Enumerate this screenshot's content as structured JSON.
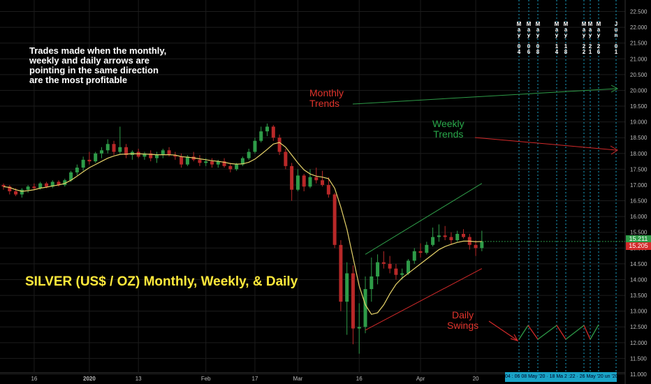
{
  "chart_data": {
    "type": "candlestick",
    "title": "SILVER (US$ / OZ) Monthly, Weekly, & Daily",
    "x_tick_labels": [
      "16",
      "2020",
      "13",
      "Feb",
      "17",
      "Mar",
      "16",
      "Apr",
      "20"
    ],
    "y_tick_labels": [
      "11.000",
      "11.500",
      "12.000",
      "12.500",
      "13.000",
      "13.500",
      "14.000",
      "14.500",
      "15.000",
      "15.500",
      "16.000",
      "16.500",
      "17.000",
      "17.500",
      "18.000",
      "18.500",
      "19.000",
      "19.500",
      "20.000",
      "20.500",
      "21.000",
      "21.500",
      "22.000",
      "22.500"
    ],
    "ylim": [
      11.0,
      22.6
    ],
    "last_price": "15.211",
    "prev_close": "15.205",
    "ohlc": [
      [
        17.0,
        17.05,
        16.85,
        16.95
      ],
      [
        16.95,
        17.0,
        16.7,
        16.8
      ],
      [
        16.8,
        16.9,
        16.65,
        16.7
      ],
      [
        16.7,
        16.9,
        16.6,
        16.85
      ],
      [
        16.85,
        17.0,
        16.75,
        16.95
      ],
      [
        16.95,
        17.05,
        16.85,
        16.9
      ],
      [
        16.9,
        17.1,
        16.85,
        17.05
      ],
      [
        17.05,
        17.1,
        16.9,
        16.95
      ],
      [
        16.95,
        17.15,
        16.9,
        17.1
      ],
      [
        17.1,
        17.15,
        16.95,
        17.0
      ],
      [
        17.0,
        17.2,
        16.95,
        17.15
      ],
      [
        17.15,
        17.45,
        17.1,
        17.4
      ],
      [
        17.4,
        17.65,
        17.3,
        17.55
      ],
      [
        17.55,
        17.9,
        17.45,
        17.8
      ],
      [
        17.8,
        18.05,
        17.65,
        17.75
      ],
      [
        17.75,
        18.05,
        17.7,
        18.0
      ],
      [
        18.0,
        18.2,
        17.85,
        18.1
      ],
      [
        18.1,
        18.45,
        18.0,
        18.3
      ],
      [
        18.3,
        18.4,
        17.95,
        18.05
      ],
      [
        18.05,
        18.85,
        18.0,
        18.2
      ],
      [
        18.2,
        18.3,
        17.85,
        17.95
      ],
      [
        17.95,
        18.1,
        17.8,
        18.05
      ],
      [
        18.05,
        18.15,
        17.85,
        17.9
      ],
      [
        17.9,
        18.05,
        17.8,
        18.0
      ],
      [
        18.0,
        18.1,
        17.75,
        17.85
      ],
      [
        17.85,
        18.05,
        17.7,
        17.95
      ],
      [
        17.95,
        18.15,
        17.85,
        18.1
      ],
      [
        18.1,
        18.2,
        17.9,
        17.95
      ],
      [
        17.95,
        18.05,
        17.8,
        17.9
      ],
      [
        17.9,
        18.0,
        17.55,
        17.65
      ],
      [
        17.65,
        17.95,
        17.6,
        17.9
      ],
      [
        17.9,
        18.05,
        17.75,
        17.8
      ],
      [
        17.8,
        17.95,
        17.6,
        17.7
      ],
      [
        17.7,
        17.85,
        17.6,
        17.75
      ],
      [
        17.75,
        17.85,
        17.55,
        17.65
      ],
      [
        17.65,
        17.8,
        17.55,
        17.75
      ],
      [
        17.75,
        17.85,
        17.55,
        17.6
      ],
      [
        17.6,
        17.7,
        17.4,
        17.5
      ],
      [
        17.5,
        17.7,
        17.45,
        17.65
      ],
      [
        17.65,
        17.9,
        17.6,
        17.85
      ],
      [
        17.85,
        18.15,
        17.8,
        18.05
      ],
      [
        18.05,
        18.5,
        18.0,
        18.4
      ],
      [
        18.4,
        18.85,
        18.35,
        18.7
      ],
      [
        18.7,
        18.95,
        18.55,
        18.85
      ],
      [
        18.85,
        18.9,
        18.4,
        18.5
      ],
      [
        18.5,
        18.6,
        17.95,
        18.05
      ],
      [
        18.05,
        18.15,
        17.5,
        17.6
      ],
      [
        17.6,
        17.7,
        16.5,
        16.85
      ],
      [
        16.85,
        17.5,
        16.8,
        17.3
      ],
      [
        17.3,
        17.35,
        16.8,
        16.95
      ],
      [
        16.95,
        17.5,
        16.9,
        17.25
      ],
      [
        17.25,
        17.55,
        17.05,
        17.15
      ],
      [
        17.15,
        17.45,
        16.95,
        17.0
      ],
      [
        17.0,
        17.25,
        16.6,
        16.7
      ],
      [
        16.7,
        16.75,
        15.0,
        15.1
      ],
      [
        15.1,
        15.25,
        13.0,
        13.3
      ],
      [
        13.3,
        14.55,
        12.25,
        14.2
      ],
      [
        14.2,
        14.45,
        11.95,
        12.45
      ],
      [
        12.45,
        13.25,
        11.65,
        12.5
      ],
      [
        12.5,
        14.1,
        12.3,
        13.7
      ],
      [
        13.7,
        14.7,
        13.3,
        14.1
      ],
      [
        14.1,
        14.8,
        13.85,
        14.55
      ],
      [
        14.55,
        14.9,
        14.35,
        14.5
      ],
      [
        14.5,
        14.75,
        14.2,
        14.35
      ],
      [
        14.35,
        14.5,
        14.0,
        14.15
      ],
      [
        14.15,
        14.35,
        14.0,
        14.2
      ],
      [
        14.2,
        14.65,
        14.15,
        14.6
      ],
      [
        14.6,
        15.0,
        14.5,
        14.9
      ],
      [
        14.9,
        15.15,
        14.7,
        14.85
      ],
      [
        14.85,
        15.2,
        14.8,
        15.1
      ],
      [
        15.1,
        15.65,
        15.05,
        15.35
      ],
      [
        15.35,
        15.75,
        15.2,
        15.4
      ],
      [
        15.4,
        15.7,
        15.25,
        15.35
      ],
      [
        15.35,
        15.5,
        15.1,
        15.25
      ],
      [
        15.25,
        15.55,
        15.2,
        15.45
      ],
      [
        15.45,
        15.6,
        15.3,
        15.35
      ],
      [
        15.35,
        15.45,
        14.95,
        15.1
      ],
      [
        15.1,
        15.25,
        14.75,
        15.0
      ],
      [
        15.0,
        15.55,
        14.9,
        15.21
      ]
    ],
    "moving_average": [
      16.95,
      16.92,
      16.85,
      16.8,
      16.82,
      16.85,
      16.9,
      16.93,
      16.97,
      17.0,
      17.05,
      17.15,
      17.28,
      17.42,
      17.55,
      17.65,
      17.75,
      17.85,
      17.92,
      17.97,
      17.98,
      17.99,
      17.99,
      17.98,
      17.97,
      17.96,
      17.96,
      17.96,
      17.95,
      17.9,
      17.88,
      17.86,
      17.83,
      17.8,
      17.77,
      17.75,
      17.72,
      17.68,
      17.66,
      17.67,
      17.72,
      17.82,
      17.97,
      18.13,
      18.3,
      18.35,
      18.2,
      17.95,
      17.7,
      17.48,
      17.35,
      17.28,
      17.25,
      17.2,
      16.9,
      16.3,
      15.6,
      14.7,
      13.8,
      13.2,
      12.9,
      12.95,
      13.2,
      13.55,
      13.85,
      14.05,
      14.2,
      14.35,
      14.5,
      14.65,
      14.8,
      14.95,
      15.05,
      15.12,
      15.18,
      15.22,
      15.22,
      15.2,
      15.21
    ],
    "channel_upper": {
      "start": [
        59,
        14.8
      ],
      "end": [
        78,
        17.05
      ]
    },
    "channel_lower": {
      "start": [
        59,
        12.4
      ],
      "end": [
        78,
        14.35
      ]
    }
  },
  "annotations": {
    "trades_note": "Trades made when the monthly,\nweekly and daily arrows are\npointing in the same direction\nare the most profitable",
    "monthly": "Monthly\nTrends",
    "weekly": "Weekly\nTrends",
    "daily": "Daily\nSwings"
  },
  "future_dates": [
    "M\na\ny\n\n0\n4",
    "M\na\ny\n\n0\n6",
    "M\na\ny\n\n0\n8",
    "M\na\ny\n\n1\n4",
    "M\na\ny\n\n1\n8",
    "M\na\ny\n\n2\n2",
    "M\na\ny\n\n2\n1",
    "M\na\ny\n\n2\n6",
    "J\nu\nn\n\n0\n1"
  ],
  "date_strip": "04 : 06   08 May '20 · 18 Ma 2 :22 · 26 May '20 un '20",
  "colors": {
    "up": "#2e9b48",
    "down": "#b82828",
    "ma": "#e8d46a",
    "channel_upper": "#2e9b48",
    "channel_lower": "#d32a2a",
    "monthly_arrow": "#2e9b48",
    "weekly_arrow": "#d32a2a",
    "axis_text": "#bbbbbb",
    "grid": "#1c1c1c",
    "dashed_line": "#1aa4c7"
  }
}
